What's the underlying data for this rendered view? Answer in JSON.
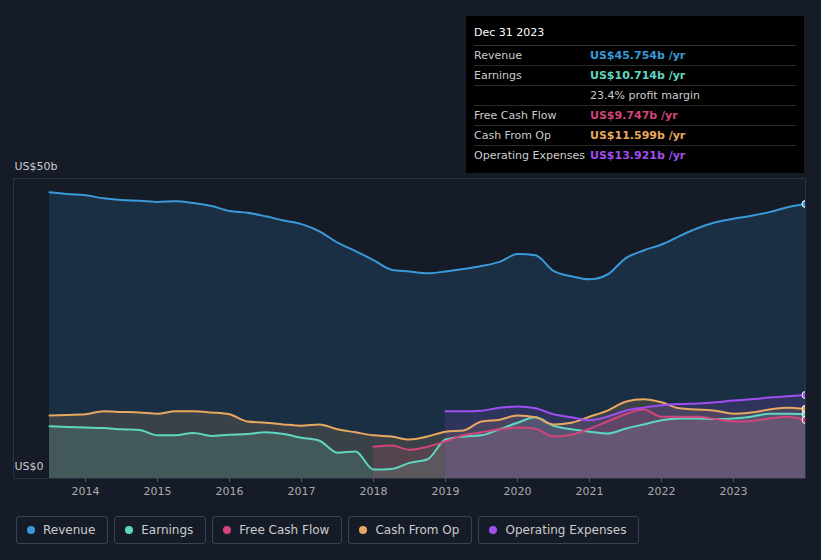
{
  "chart_data": {
    "type": "area",
    "x": [
      2013.5,
      2013.75,
      2014,
      2014.25,
      2014.5,
      2014.75,
      2015,
      2015.25,
      2015.5,
      2015.75,
      2016,
      2016.25,
      2016.5,
      2016.75,
      2017,
      2017.25,
      2017.5,
      2017.75,
      2018,
      2018.25,
      2018.5,
      2018.75,
      2019,
      2019.25,
      2019.5,
      2019.75,
      2020,
      2020.25,
      2020.5,
      2020.75,
      2021,
      2021.25,
      2021.5,
      2021.75,
      2022,
      2022.25,
      2022.5,
      2022.75,
      2023,
      2023.25,
      2023.5,
      2023.75,
      2024
    ],
    "series": [
      {
        "name": "Revenue",
        "color": "#3a9ad9",
        "values": [
          47.7,
          47.4,
          47.2,
          46.7,
          46.4,
          46.3,
          46.1,
          46.2,
          45.9,
          45.4,
          44.6,
          44.3,
          43.7,
          43.0,
          42.4,
          41.2,
          39.3,
          37.9,
          36.4,
          34.8,
          34.5,
          34.2,
          34.5,
          34.9,
          35.4,
          36.1,
          37.4,
          37.2,
          34.6,
          33.7,
          33.2,
          34.0,
          36.7,
          38.0,
          39.0,
          40.4,
          41.7,
          42.7,
          43.3,
          43.8,
          44.4,
          45.2,
          45.754
        ]
      },
      {
        "name": "Earnings",
        "color": "#5fd6c0",
        "values": [
          8.7,
          8.6,
          8.5,
          8.4,
          8.2,
          8.1,
          7.2,
          7.2,
          7.6,
          7.1,
          7.3,
          7.4,
          7.7,
          7.4,
          6.8,
          6.3,
          4.3,
          4.5,
          1.5,
          1.6,
          2.6,
          3.2,
          6.5,
          7.0,
          7.2,
          8.2,
          9.3,
          10.2,
          8.8,
          8.2,
          7.8,
          7.5,
          8.3,
          9.0,
          9.7,
          10.0,
          10.0,
          9.9,
          10.0,
          10.3,
          10.8,
          10.8,
          10.714
        ]
      },
      {
        "name": "Free Cash Flow",
        "color": "#d1457a",
        "values": [
          null,
          null,
          null,
          null,
          null,
          null,
          null,
          null,
          null,
          null,
          null,
          null,
          null,
          null,
          null,
          null,
          null,
          null,
          5.3,
          5.5,
          4.8,
          5.3,
          6.2,
          7.2,
          7.7,
          8.2,
          8.5,
          8.3,
          7.0,
          7.3,
          8.3,
          9.5,
          10.7,
          11.5,
          10.3,
          10.3,
          10.3,
          9.9,
          9.5,
          9.6,
          10.0,
          10.3,
          9.747
        ]
      },
      {
        "name": "Cash From Op",
        "color": "#e8a85f",
        "values": [
          10.5,
          10.6,
          10.7,
          11.2,
          11.1,
          11.0,
          10.8,
          11.2,
          11.2,
          11.0,
          10.7,
          9.5,
          9.3,
          9.0,
          8.8,
          9.0,
          8.2,
          7.7,
          7.2,
          7.0,
          6.5,
          7.0,
          7.8,
          8.0,
          9.5,
          9.8,
          10.5,
          10.2,
          9.0,
          9.3,
          10.3,
          11.3,
          12.8,
          13.2,
          12.7,
          11.7,
          11.5,
          11.3,
          10.8,
          11.0,
          11.5,
          11.8,
          11.599
        ]
      },
      {
        "name": "Operating Expenses",
        "color": "#a04ef0",
        "values": [
          null,
          null,
          null,
          null,
          null,
          null,
          null,
          null,
          null,
          null,
          null,
          null,
          null,
          null,
          null,
          null,
          null,
          null,
          null,
          null,
          null,
          null,
          11.2,
          11.2,
          11.3,
          11.8,
          12.0,
          11.7,
          10.7,
          10.2,
          9.7,
          10.3,
          11.3,
          11.8,
          12.2,
          12.4,
          12.5,
          12.7,
          13.0,
          13.2,
          13.5,
          13.7,
          13.921
        ]
      }
    ],
    "xlim": [
      2013,
      2024
    ],
    "xticks": [
      2014,
      2015,
      2016,
      2017,
      2018,
      2019,
      2020,
      2021,
      2022,
      2023
    ],
    "ylim": [
      0,
      50
    ],
    "yticks": [
      {
        "value": 0,
        "label": "US$0"
      },
      {
        "value": 50,
        "label": "US$50b"
      }
    ],
    "grid": true,
    "legend": "bottom",
    "annotation": {
      "title": "Dec 31 2023",
      "rows": [
        {
          "label": "Revenue",
          "value": "US$45.754b /yr"
        },
        {
          "label": "Earnings",
          "value": "US$10.714b /yr"
        },
        {
          "value": "23.4% profit margin"
        },
        {
          "label": "Free Cash Flow",
          "value": "US$9.747b /yr"
        },
        {
          "label": "Cash From Op",
          "value": "US$11.599b /yr"
        },
        {
          "label": "Operating Expenses",
          "value": "US$13.921b /yr"
        }
      ]
    }
  }
}
